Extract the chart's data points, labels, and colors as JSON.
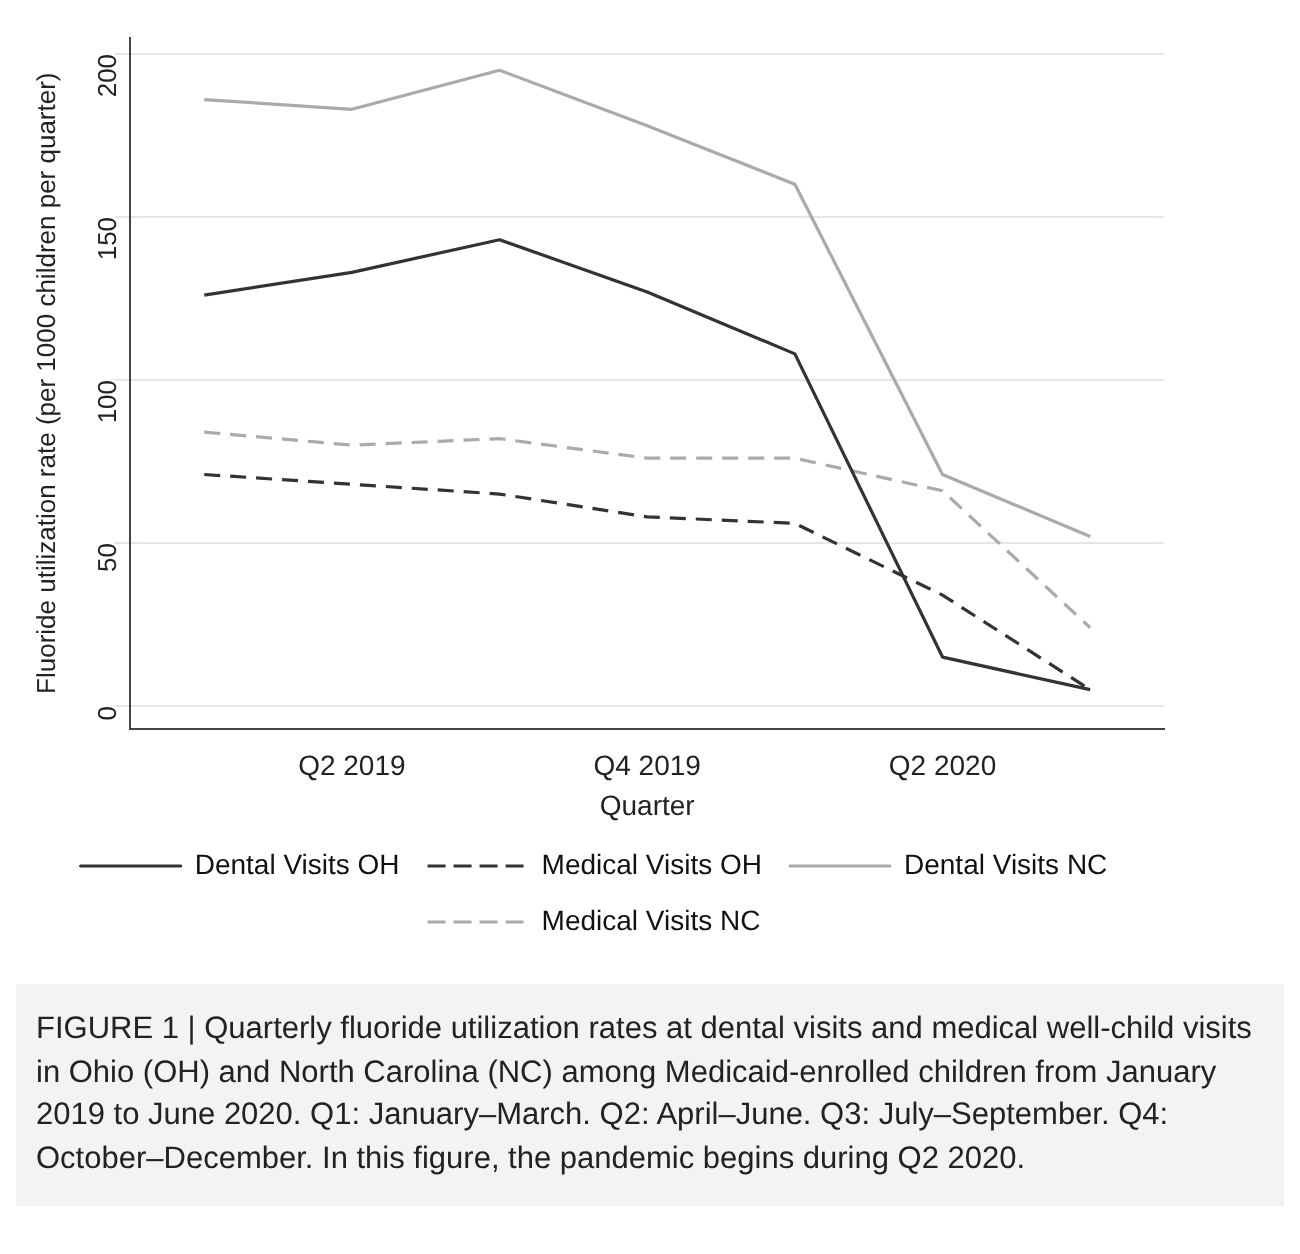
{
  "chart_data": {
    "type": "line",
    "xlabel": "Quarter",
    "ylabel": "Fluoride utilization rate (per 1000 children per quarter)",
    "categories": [
      null,
      "Q2 2019",
      null,
      "Q4 2019",
      null,
      "Q2 2020",
      null
    ],
    "series": [
      {
        "name": "Dental Visits OH",
        "color": "#333333",
        "line_style": "solid",
        "values": [
          126,
          133,
          143,
          127,
          108,
          15,
          5
        ]
      },
      {
        "name": "Medical Visits OH",
        "color": "#333333",
        "line_style": "dashed",
        "values": [
          71,
          68,
          65,
          58,
          56,
          34,
          5
        ]
      },
      {
        "name": "Dental Visits NC",
        "color": "#aaaaaa",
        "line_style": "solid",
        "values": [
          186,
          183,
          195,
          178,
          160,
          71,
          52
        ]
      },
      {
        "name": "Medical Visits NC",
        "color": "#aaaaaa",
        "line_style": "dashed",
        "values": [
          84,
          80,
          82,
          76,
          76,
          66,
          24
        ]
      }
    ],
    "ylim": [
      -7,
      205
    ],
    "yticks": [
      0,
      50,
      100,
      150,
      200
    ],
    "grid": "y",
    "legend": "bottom",
    "marker": "none",
    "annotations": [
      "FIGURE 1 | Quarterly fluoride utilization rates at dental visits and medical well-child visits in Ohio (OH) and North Carolina (NC) among Medicaid-enrolled children from January 2019 to June 2020. Q1: January–March. Q2: April–June. Q3: July–September. Q4: October–December. In this figure, the pandemic begins during Q2 2020."
    ]
  }
}
